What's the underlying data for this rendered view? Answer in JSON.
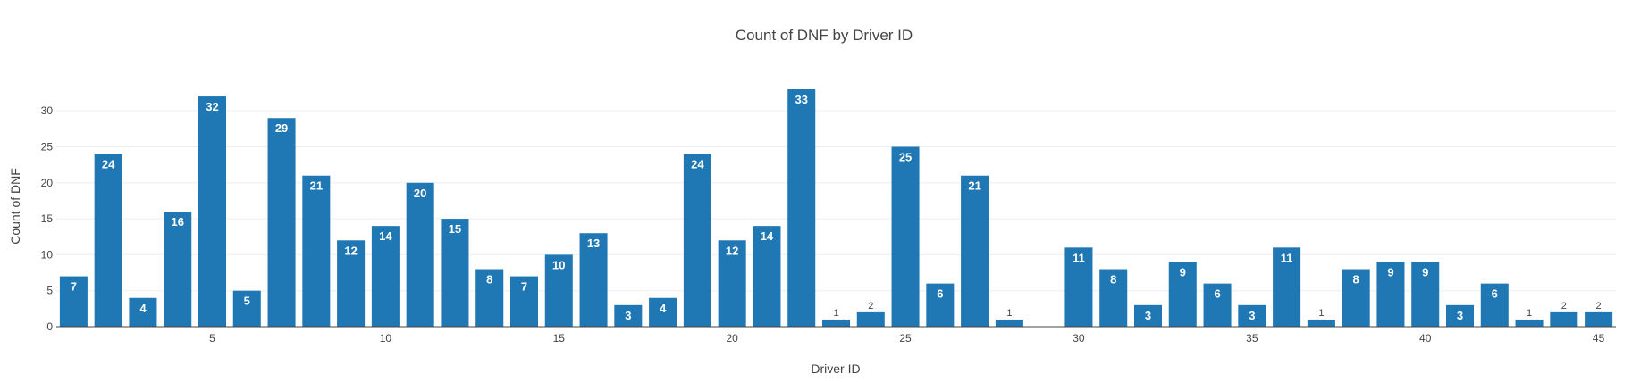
{
  "chart_data": {
    "type": "bar",
    "title": "Count of DNF by Driver ID",
    "xlabel": "Driver ID",
    "ylabel": "Count of DNF",
    "x": [
      1,
      2,
      3,
      4,
      5,
      6,
      7,
      8,
      9,
      10,
      11,
      12,
      13,
      14,
      15,
      16,
      17,
      18,
      19,
      20,
      21,
      22,
      23,
      24,
      25,
      26,
      27,
      28,
      29,
      30,
      31,
      32,
      33,
      34,
      35,
      36,
      37,
      38,
      39,
      40,
      41,
      42,
      43,
      44,
      45
    ],
    "values": [
      7,
      24,
      4,
      16,
      32,
      5,
      29,
      21,
      12,
      14,
      20,
      15,
      8,
      7,
      10,
      13,
      3,
      4,
      24,
      12,
      14,
      33,
      1,
      2,
      25,
      6,
      21,
      1,
      0,
      11,
      8,
      3,
      9,
      6,
      3,
      11,
      1,
      8,
      9,
      9,
      3,
      6,
      1,
      2,
      2
    ],
    "bar_labels": [
      "7",
      "24",
      "4",
      "16",
      "32",
      "5",
      "29",
      "21",
      "12",
      "14",
      "20",
      "15",
      "8",
      "7",
      "10",
      "13",
      "3",
      "4",
      "24",
      "12",
      "14",
      "33",
      "1",
      "2",
      "25",
      "6",
      "21",
      "1",
      "",
      "11",
      "8",
      "3",
      "9",
      "6",
      "3",
      "11",
      "1",
      "8",
      "9",
      "9",
      "3",
      "6",
      "1",
      "2",
      "2"
    ],
    "xticks": [
      5,
      10,
      15,
      20,
      25,
      30,
      35,
      40,
      45
    ],
    "xtick_labels": [
      "5",
      "10",
      "15",
      "20",
      "25",
      "30",
      "35",
      "40",
      "45"
    ],
    "yticks": [
      0,
      5,
      10,
      15,
      20,
      25,
      30
    ],
    "ytick_labels": [
      "0",
      "5",
      "10",
      "15",
      "20",
      "25",
      "30"
    ],
    "xlim": [
      0.5,
      45.5
    ],
    "ylim": [
      0,
      33
    ],
    "grid": true,
    "legend": "none",
    "colors": {
      "bar": "#1f77b4",
      "grid": "#eeeeee",
      "text": "#444444",
      "inside_label": "#ffffff"
    }
  }
}
